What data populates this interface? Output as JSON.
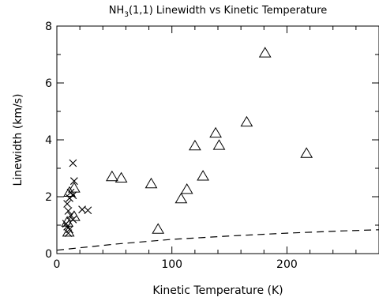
{
  "chart_data": {
    "type": "scatter",
    "title": {
      "prefix": "NH",
      "subscript": "3",
      "suffix": "(1,1) Linewidth vs Kinetic Temperature"
    },
    "xlabel": "Kinetic Temperature (K)",
    "ylabel": "Linewidth (km/s)",
    "xlim": [
      0,
      280
    ],
    "ylim": [
      0,
      8
    ],
    "xticks": [
      0,
      100,
      200
    ],
    "yticks": [
      0,
      2,
      4,
      6,
      8
    ],
    "xminor_step": 20,
    "yminor_step": 1,
    "grid": false,
    "series": [
      {
        "marker": "triangle",
        "points": [
          {
            "x": 15,
            "y": 2.3
          },
          {
            "x": 48,
            "y": 2.7
          },
          {
            "x": 56,
            "y": 2.65
          },
          {
            "x": 82,
            "y": 2.45
          },
          {
            "x": 88,
            "y": 0.85
          },
          {
            "x": 108,
            "y": 1.92
          },
          {
            "x": 113,
            "y": 2.25
          },
          {
            "x": 120,
            "y": 3.78
          },
          {
            "x": 127,
            "y": 2.72
          },
          {
            "x": 138,
            "y": 4.23
          },
          {
            "x": 141,
            "y": 3.8
          },
          {
            "x": 165,
            "y": 4.62
          },
          {
            "x": 181,
            "y": 7.05
          },
          {
            "x": 217,
            "y": 3.52
          },
          {
            "x": 11,
            "y": 2.15
          },
          {
            "x": 15,
            "y": 1.3
          },
          {
            "x": 9,
            "y": 1.1
          },
          {
            "x": 10,
            "y": 0.75
          }
        ]
      },
      {
        "marker": "cross",
        "points": [
          {
            "x": 14,
            "y": 3.18
          },
          {
            "x": 15,
            "y": 2.55
          },
          {
            "x": 12,
            "y": 2.15
          },
          {
            "x": 14,
            "y": 2.05
          },
          {
            "x": 11,
            "y": 1.95
          },
          {
            "x": 9,
            "y": 1.75
          },
          {
            "x": 10,
            "y": 1.5
          },
          {
            "x": 12,
            "y": 1.35
          },
          {
            "x": 14,
            "y": 1.2
          },
          {
            "x": 8,
            "y": 1.05
          },
          {
            "x": 9,
            "y": 0.95
          },
          {
            "x": 11,
            "y": 0.85
          },
          {
            "x": 10,
            "y": 0.72
          },
          {
            "x": 22,
            "y": 1.55
          },
          {
            "x": 27,
            "y": 1.52
          }
        ]
      },
      {
        "marker": "dashed-line",
        "points": [
          {
            "x": 0,
            "y": 0.12
          },
          {
            "x": 50,
            "y": 0.33
          },
          {
            "x": 100,
            "y": 0.5
          },
          {
            "x": 150,
            "y": 0.62
          },
          {
            "x": 200,
            "y": 0.72
          },
          {
            "x": 250,
            "y": 0.8
          },
          {
            "x": 280,
            "y": 0.84
          }
        ]
      }
    ]
  }
}
